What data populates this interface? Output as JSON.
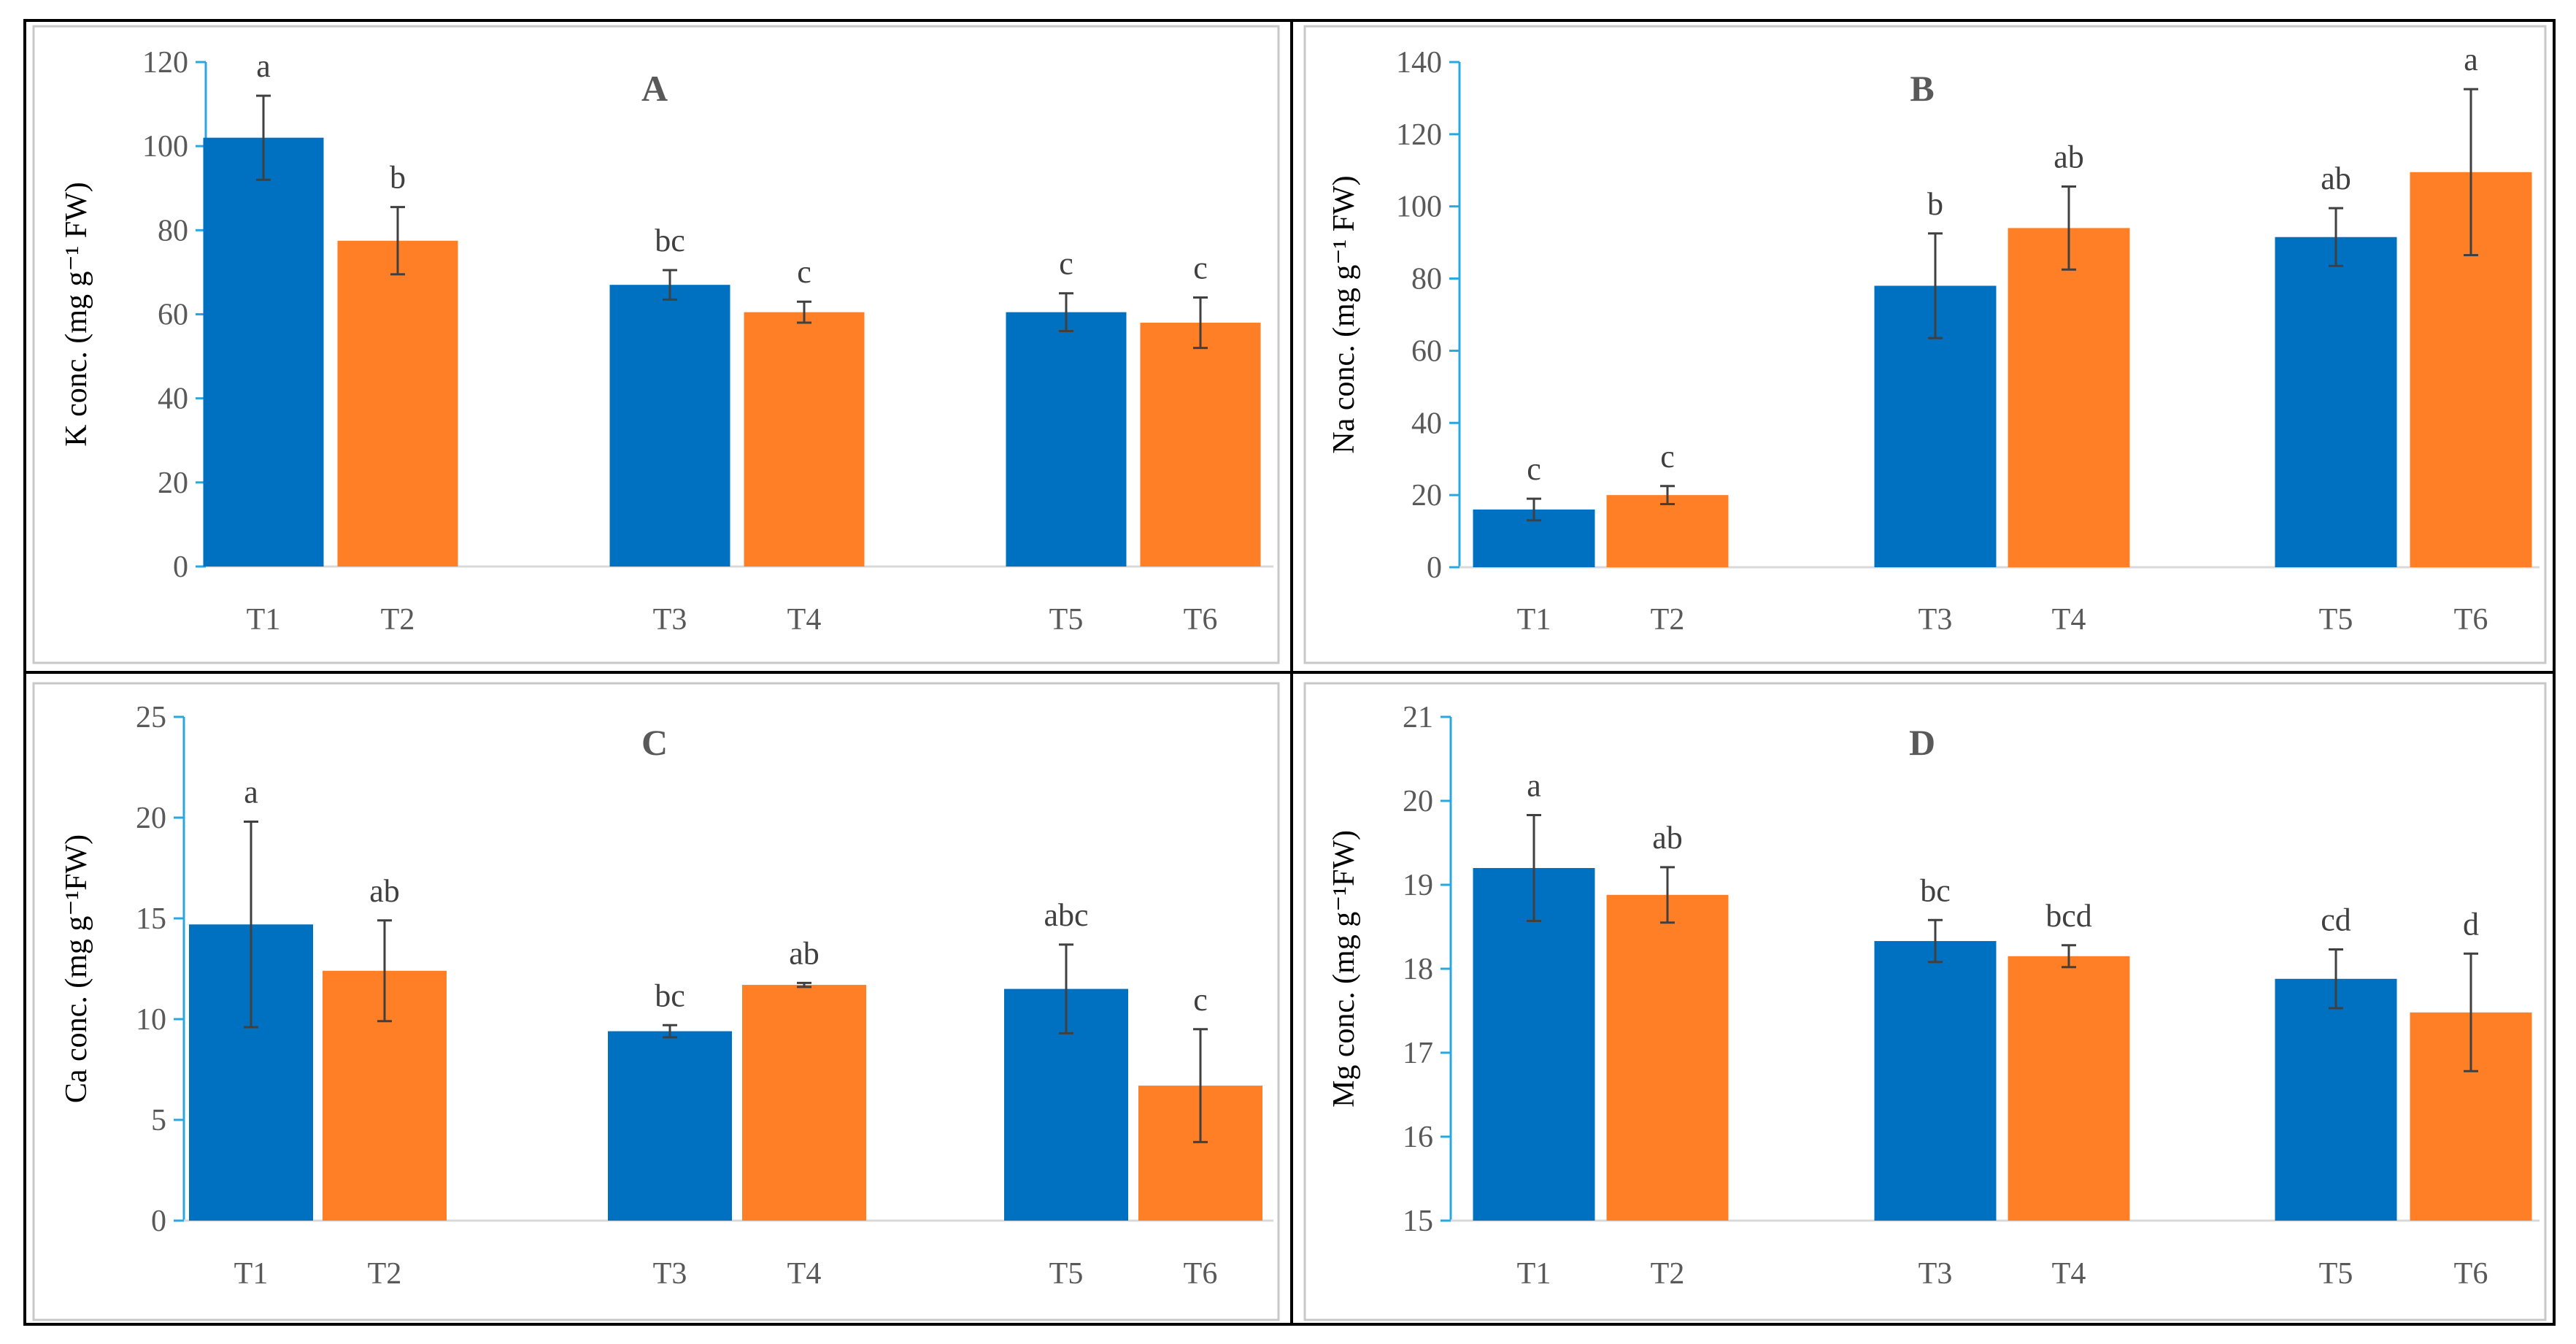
{
  "colors": {
    "blue": "#0070C0",
    "orange": "#FF7F27",
    "axis": "#29A8E0",
    "error": "#404040",
    "panel_border": "#C8C8C8"
  },
  "chart_data": [
    {
      "type": "bar",
      "panel": "A",
      "title": "A",
      "categories": [
        "T1",
        "T2",
        "T3",
        "T4",
        "T5",
        "T6"
      ],
      "values": [
        102,
        77.5,
        67,
        60.5,
        60.5,
        58
      ],
      "errors": [
        10,
        8,
        3.5,
        2.5,
        4.5,
        6
      ],
      "letters": [
        "a",
        "b",
        "bc",
        "c",
        "c",
        "c"
      ],
      "bar_colors": [
        "blue",
        "orange",
        "blue",
        "orange",
        "blue",
        "orange"
      ],
      "ylabel": "K conc. (mg g⁻¹ FW)",
      "ylim": [
        0,
        120
      ],
      "yticks": [
        "0",
        "20",
        "40",
        "60",
        "80",
        "100",
        "120"
      ]
    },
    {
      "type": "bar",
      "panel": "B",
      "title": "B",
      "categories": [
        "T1",
        "T2",
        "T3",
        "T4",
        "T5",
        "T6"
      ],
      "values": [
        16,
        20,
        78,
        94,
        91.5,
        109.5
      ],
      "errors": [
        3,
        2.5,
        14.5,
        11.5,
        8,
        23
      ],
      "letters": [
        "c",
        "c",
        "b",
        "ab",
        "ab",
        "a"
      ],
      "bar_colors": [
        "blue",
        "orange",
        "blue",
        "orange",
        "blue",
        "orange"
      ],
      "ylabel": "Na conc. (mg g⁻¹ FW)",
      "ylim": [
        0,
        140
      ],
      "yticks": [
        "0",
        "20",
        "40",
        "60",
        "80",
        "100",
        "120",
        "140"
      ]
    },
    {
      "type": "bar",
      "panel": "C",
      "title": "C",
      "categories": [
        "T1",
        "T2",
        "T3",
        "T4",
        "T5",
        "T6"
      ],
      "values": [
        14.7,
        12.4,
        9.4,
        11.7,
        11.5,
        6.7
      ],
      "errors": [
        5.1,
        2.5,
        0.3,
        0.1,
        2.2,
        2.8
      ],
      "letters": [
        "a",
        "ab",
        "bc",
        "ab",
        "abc",
        "c"
      ],
      "bar_colors": [
        "blue",
        "orange",
        "blue",
        "orange",
        "blue",
        "orange"
      ],
      "ylabel": "Ca conc. (mg g⁻¹FW)",
      "ylim": [
        0,
        25
      ],
      "yticks": [
        "0",
        "5",
        "10",
        "15",
        "20",
        "25"
      ]
    },
    {
      "type": "bar",
      "panel": "D",
      "title": "D",
      "categories": [
        "T1",
        "T2",
        "T3",
        "T4",
        "T5",
        "T6"
      ],
      "values": [
        19.2,
        18.88,
        18.33,
        18.15,
        17.88,
        17.48
      ],
      "errors": [
        0.63,
        0.33,
        0.25,
        0.13,
        0.35,
        0.7
      ],
      "letters": [
        "a",
        "ab",
        "bc",
        "bcd",
        "cd",
        "d"
      ],
      "bar_colors": [
        "blue",
        "orange",
        "blue",
        "orange",
        "blue",
        "orange"
      ],
      "ylabel": "Mg conc. (mg g⁻¹FW)",
      "ylim": [
        15,
        21
      ],
      "yticks": [
        "15",
        "16",
        "17",
        "18",
        "19",
        "20",
        "21"
      ]
    }
  ]
}
